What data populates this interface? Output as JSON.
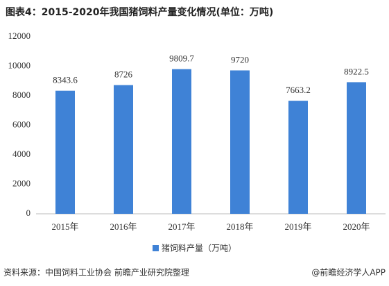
{
  "chart_data": {
    "type": "bar",
    "title": "图表4：2015-2020年我国猪饲料产量变化情况(单位：万吨)",
    "categories": [
      "2015年",
      "2016年",
      "2017年",
      "2018年",
      "2019年",
      "2020年"
    ],
    "series": [
      {
        "name": "猪饲料产量（万吨）",
        "color": "#3f82d6",
        "values": [
          8343.6,
          8726,
          9809.7,
          9720,
          7663.2,
          8922.5
        ]
      }
    ],
    "ylim": [
      0,
      12000
    ],
    "yticks": [
      0,
      2000,
      4000,
      6000,
      8000,
      10000,
      12000
    ],
    "grid": false,
    "legend": "bottom",
    "source": "资料来源：中国饲料工业协会 前瞻产业研究院整理",
    "credit": "@前瞻经济学人APP"
  }
}
